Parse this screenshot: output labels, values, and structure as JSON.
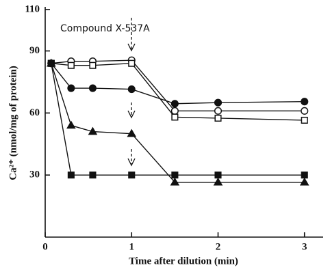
{
  "chart_data": {
    "type": "line",
    "xlabel": "Time after dilution (min)",
    "ylabel": "Ca²⁺ (nmol/mg of protein)",
    "annotation": "Compound X-537A",
    "xlim": [
      0,
      3.2
    ],
    "xticks": [
      0,
      1,
      2,
      3
    ],
    "ylim": [
      0,
      110
    ],
    "yticks": [
      30,
      60,
      90,
      110
    ],
    "series": [
      {
        "name": "open circles",
        "marker": "circle",
        "filled": false,
        "color": "#111",
        "x": [
          0.07,
          0.3,
          0.55,
          1,
          1.5,
          2,
          3
        ],
        "values": [
          84,
          85,
          85,
          85.5,
          61,
          61,
          61
        ]
      },
      {
        "name": "open squares",
        "marker": "square",
        "filled": false,
        "color": "#111",
        "x": [
          0.07,
          0.3,
          0.55,
          1,
          1.5,
          2,
          3
        ],
        "values": [
          84,
          83,
          83,
          84,
          58,
          57.5,
          56.5
        ]
      },
      {
        "name": "filled circles",
        "marker": "circle",
        "filled": true,
        "color": "#111",
        "x": [
          0.07,
          0.3,
          0.55,
          1,
          1.5,
          2,
          3
        ],
        "values": [
          84,
          72,
          72,
          71.5,
          64.5,
          65,
          65.5
        ]
      },
      {
        "name": "filled triangles",
        "marker": "triangle",
        "filled": true,
        "color": "#111",
        "x": [
          0.07,
          0.3,
          0.55,
          1,
          1.5,
          2,
          3
        ],
        "values": [
          84,
          54,
          51,
          50,
          26.5,
          26.5,
          26.5
        ]
      },
      {
        "name": "filled squares",
        "marker": "square",
        "filled": true,
        "color": "#111",
        "x": [
          0.07,
          0.3,
          0.55,
          1,
          1.5,
          2,
          3
        ],
        "values": [
          84,
          30,
          30,
          30,
          30,
          30,
          30
        ]
      }
    ]
  }
}
